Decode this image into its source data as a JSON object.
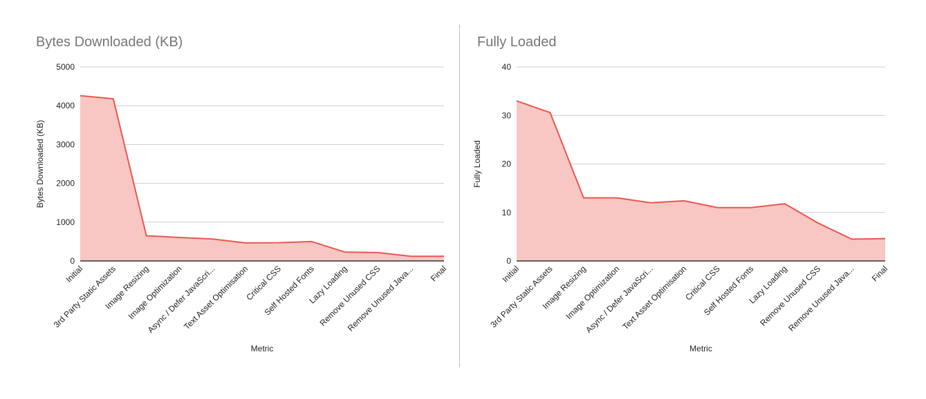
{
  "colors": {
    "line": "#e8574f",
    "area": "#f9c7c3",
    "grid": "#cccccc",
    "axis": "#333333",
    "divider": "#bdbdbd"
  },
  "chart_data": [
    {
      "type": "area",
      "title": "Bytes Downloaded (KB)",
      "xlabel": "Metric",
      "ylabel": "Bytes Downloaded (KB)",
      "ylim": [
        0,
        5000
      ],
      "yticks": [
        0,
        1000,
        2000,
        3000,
        4000,
        5000
      ],
      "categories": [
        "Initial",
        "3rd Party Static Assets",
        "Image Resizing",
        "Image Optimization",
        "Async / Defer JavaScri...",
        "Text Asset Optimisation",
        "Critical CSS",
        "Self Hosted Fonts",
        "Lazy Loading",
        "Remove Unused CSS",
        "Remove Unused Java...",
        "Final"
      ],
      "series": [
        {
          "values": [
            4260,
            4180,
            650,
            605,
            565,
            465,
            470,
            500,
            230,
            215,
            120,
            120
          ]
        }
      ],
      "grid": true,
      "legend": "none"
    },
    {
      "type": "area",
      "title": "Fully Loaded",
      "xlabel": "Metric",
      "ylabel": "Fully Loaded",
      "ylim": [
        0,
        40
      ],
      "yticks": [
        0,
        10,
        20,
        30,
        40
      ],
      "categories": [
        "Initial",
        "3rd Party Static Assets",
        "Image Resizing",
        "Image Optimization",
        "Async / Defer JavaScri...",
        "Text Asset Optimisation",
        "Critical CSS",
        "Self Hosted Fonts",
        "Lazy Loading",
        "Remove Unused CSS",
        "Remove Unused Java...",
        "Final"
      ],
      "series": [
        {
          "values": [
            33,
            30.6,
            13,
            13,
            12,
            12.4,
            11,
            11,
            11.8,
            7.8,
            4.5,
            4.6
          ]
        }
      ],
      "grid": true,
      "legend": "none"
    }
  ]
}
